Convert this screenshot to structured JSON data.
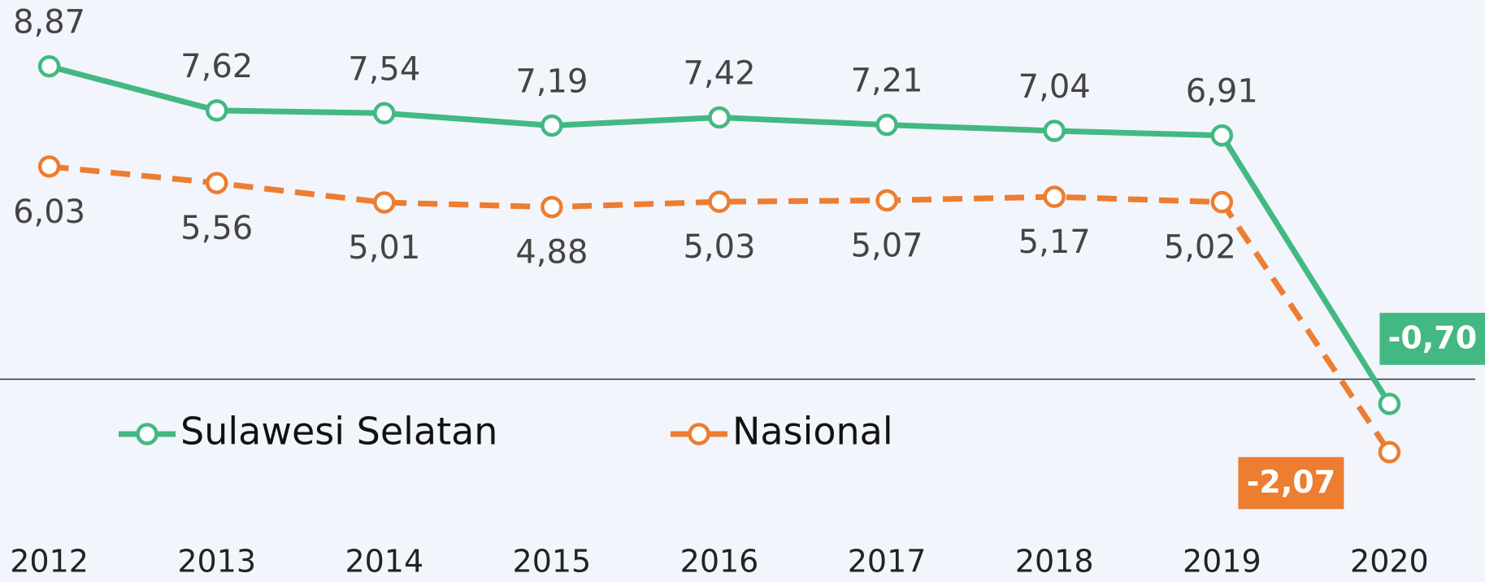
{
  "chart_data": {
    "type": "line",
    "categories": [
      "2012",
      "2013",
      "2014",
      "2015",
      "2016",
      "2017",
      "2018",
      "2019",
      "2020"
    ],
    "series": [
      {
        "name": "Sulawesi Selatan",
        "color": "#43b883",
        "values": [
          8.87,
          7.62,
          7.54,
          7.19,
          7.42,
          7.21,
          7.04,
          6.91,
          -0.7
        ],
        "value_labels": [
          "8,87",
          "7,62",
          "7,54",
          "7,19",
          "7,42",
          "7,21",
          "7,04",
          "6,91",
          "-0,70"
        ]
      },
      {
        "name": "Nasional",
        "color": "#ed7d31",
        "dashed": true,
        "values": [
          6.03,
          5.56,
          5.01,
          4.88,
          5.03,
          5.07,
          5.17,
          5.02,
          -2.07
        ],
        "value_labels": [
          "6,03",
          "5,56",
          "5,01",
          "4,88",
          "5,03",
          "5,07",
          "5,17",
          "5,02",
          "-2,07"
        ]
      }
    ],
    "ylim": [
      -5.75,
      10.75
    ]
  }
}
